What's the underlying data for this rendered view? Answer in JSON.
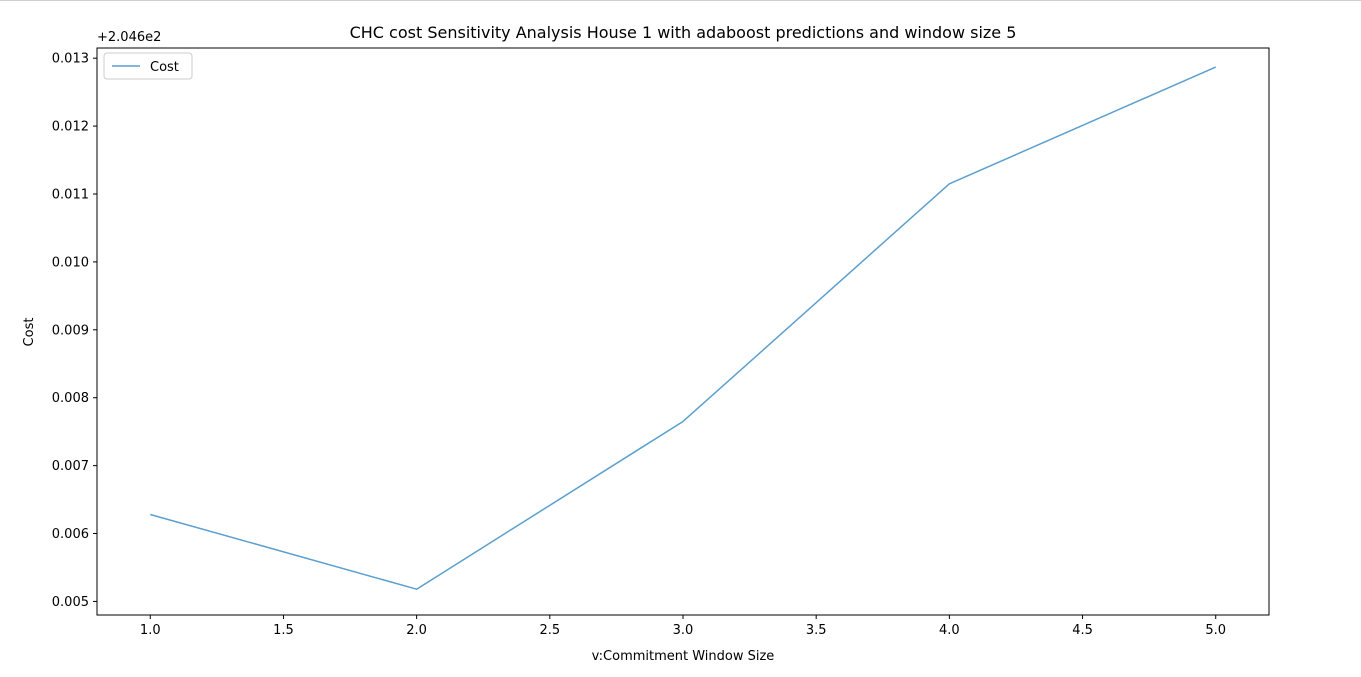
{
  "chart_data": {
    "type": "line",
    "title": "CHC cost Sensitivity Analysis House 1 with adaboost predictions and window size 5",
    "xlabel": "v:Commitment Window Size",
    "ylabel": "Cost",
    "offset_label": "+2.046e2",
    "xlim": [
      0.8,
      5.2
    ],
    "ylim": [
      0.0048,
      0.01315
    ],
    "x_ticks": [
      1.0,
      1.5,
      2.0,
      2.5,
      3.0,
      3.5,
      4.0,
      4.5,
      5.0
    ],
    "x_tick_labels": [
      "1.0",
      "1.5",
      "2.0",
      "2.5",
      "3.0",
      "3.5",
      "4.0",
      "4.5",
      "5.0"
    ],
    "y_ticks": [
      0.005,
      0.006,
      0.007,
      0.008,
      0.009,
      0.01,
      0.011,
      0.012,
      0.013
    ],
    "y_tick_labels": [
      "0.005",
      "0.006",
      "0.007",
      "0.008",
      "0.009",
      "0.010",
      "0.011",
      "0.012",
      "0.013"
    ],
    "grid": false,
    "legend_position": "top-left",
    "series": [
      {
        "name": "Cost",
        "color": "#5b9fce",
        "x": [
          1.0,
          2.0,
          3.0,
          4.0,
          5.0
        ],
        "y": [
          0.00628,
          0.00518,
          0.00765,
          0.01115,
          0.01287
        ]
      }
    ]
  }
}
